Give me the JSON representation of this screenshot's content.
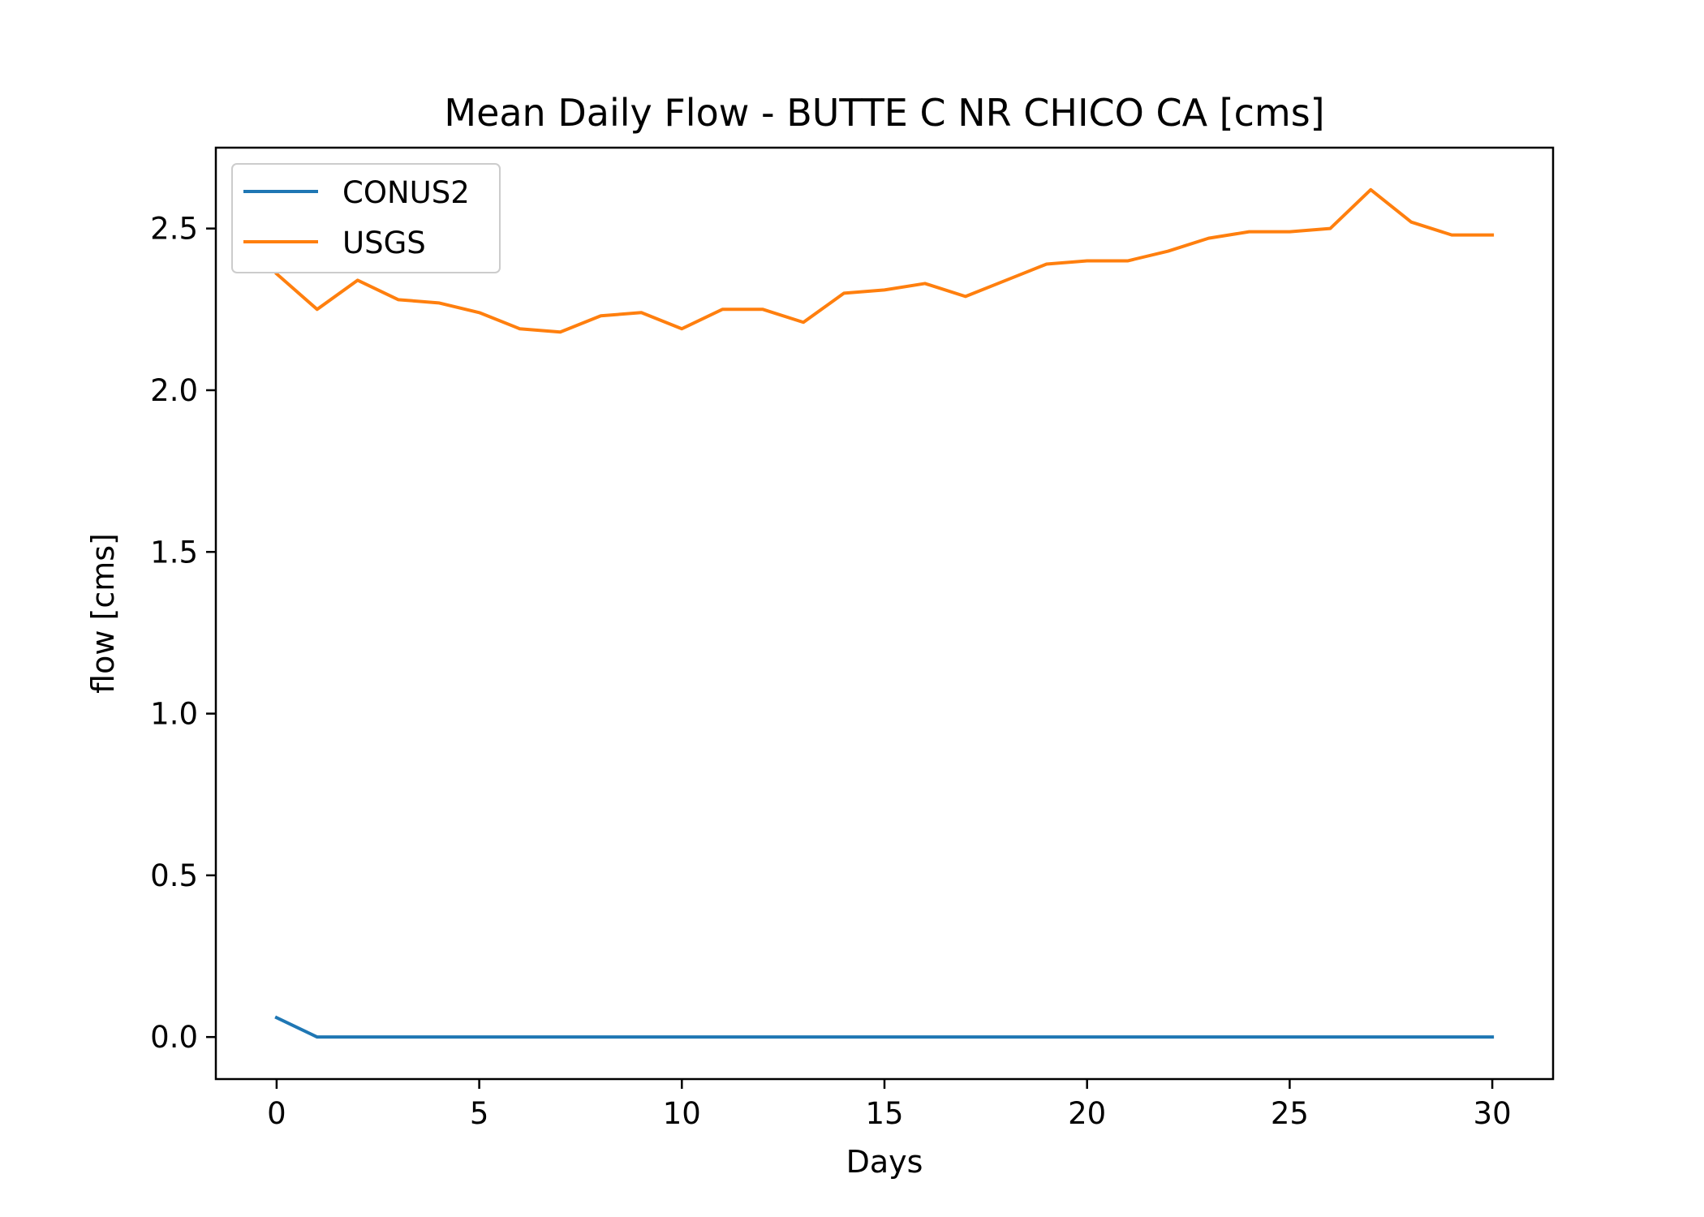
{
  "chart_data": {
    "type": "line",
    "title": "Mean Daily Flow - BUTTE C NR CHICO CA [cms]",
    "xlabel": "Days",
    "ylabel": "flow [cms]",
    "xlim": [
      -1.5,
      31.5
    ],
    "ylim": [
      -0.13,
      2.75
    ],
    "xticks": [
      0,
      5,
      10,
      15,
      20,
      25,
      30
    ],
    "yticks": [
      0.0,
      0.5,
      1.0,
      1.5,
      2.0,
      2.5
    ],
    "xtick_labels": [
      "0",
      "5",
      "10",
      "15",
      "20",
      "25",
      "30"
    ],
    "ytick_labels": [
      "0.0",
      "0.5",
      "1.0",
      "1.5",
      "2.0",
      "2.5"
    ],
    "grid": false,
    "legend_position": "upper-left",
    "x": [
      0,
      1,
      2,
      3,
      4,
      5,
      6,
      7,
      8,
      9,
      10,
      11,
      12,
      13,
      14,
      15,
      16,
      17,
      18,
      19,
      20,
      21,
      22,
      23,
      24,
      25,
      26,
      27,
      28,
      29,
      30
    ],
    "series": [
      {
        "name": "CONUS2",
        "color": "#1f77b4",
        "values": [
          0.06,
          0,
          0,
          0,
          0,
          0,
          0,
          0,
          0,
          0,
          0,
          0,
          0,
          0,
          0,
          0,
          0,
          0,
          0,
          0,
          0,
          0,
          0,
          0,
          0,
          0,
          0,
          0,
          0,
          0,
          0
        ]
      },
      {
        "name": "USGS",
        "color": "#ff7f0e",
        "values": [
          2.36,
          2.25,
          2.34,
          2.28,
          2.27,
          2.24,
          2.19,
          2.18,
          2.23,
          2.24,
          2.19,
          2.25,
          2.25,
          2.21,
          2.3,
          2.31,
          2.33,
          2.29,
          2.34,
          2.39,
          2.4,
          2.4,
          2.43,
          2.47,
          2.49,
          2.49,
          2.5,
          2.62,
          2.52,
          2.48,
          2.48
        ]
      }
    ]
  }
}
